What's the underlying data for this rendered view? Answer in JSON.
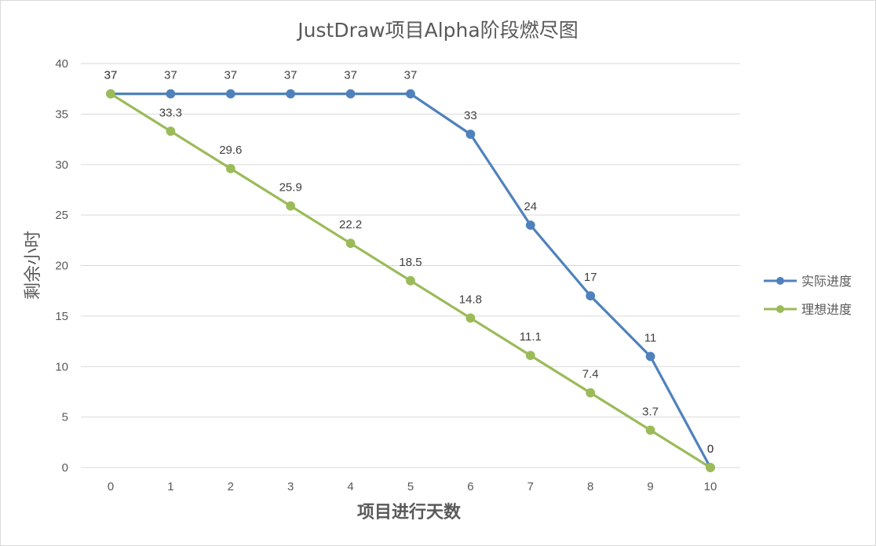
{
  "chart_data": {
    "type": "line",
    "title": "JustDraw项目Alpha阶段燃尽图",
    "xlabel": "项目进行天数",
    "ylabel": "剩余小时",
    "x": [
      0,
      1,
      2,
      3,
      4,
      5,
      6,
      7,
      8,
      9,
      10
    ],
    "x_tick_labels": [
      "0",
      "1",
      "2",
      "3",
      "4",
      "5",
      "6",
      "7",
      "8",
      "9",
      "10"
    ],
    "y_tick_labels": [
      "0",
      "5",
      "10",
      "15",
      "20",
      "25",
      "30",
      "35",
      "40"
    ],
    "ylim": [
      0,
      40
    ],
    "grid": "horizontal",
    "legend_position": "right",
    "series": [
      {
        "name": "实际进度",
        "color": "#4f81bd",
        "values": [
          37,
          37,
          37,
          37,
          37,
          37,
          33,
          24,
          17,
          11,
          0
        ],
        "labels": [
          "37",
          "37",
          "37",
          "37",
          "37",
          "37",
          "33",
          "24",
          "17",
          "11",
          "0"
        ]
      },
      {
        "name": "理想进度",
        "color": "#9bbb59",
        "values": [
          37,
          33.3,
          29.6,
          25.9,
          22.2,
          18.5,
          14.8,
          11.1,
          7.4,
          3.7,
          0
        ],
        "labels": [
          "37",
          "33.3",
          "29.6",
          "25.9",
          "22.2",
          "18.5",
          "14.8",
          "11.1",
          "7.4",
          "3.7",
          "0"
        ]
      }
    ]
  }
}
